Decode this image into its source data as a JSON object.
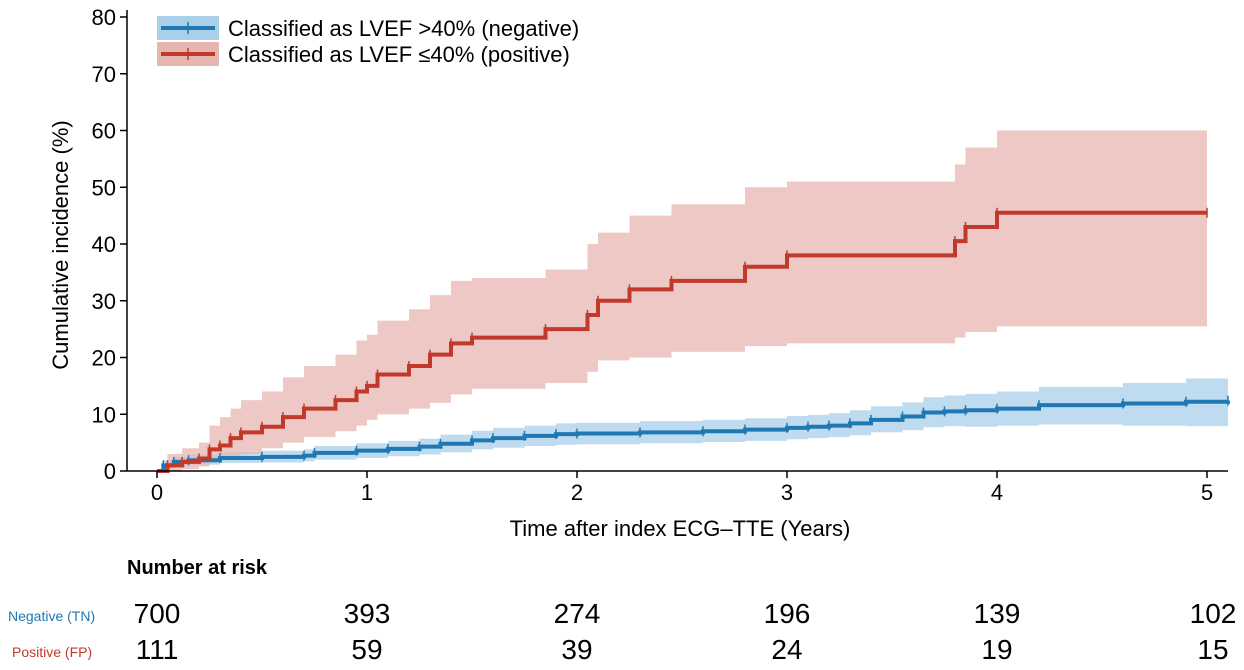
{
  "chart_data": {
    "type": "line",
    "title": "",
    "xlabel": "Time after index ECG–TTE (Years)",
    "ylabel": "Cumulative incidence (%)",
    "xlim": [
      0,
      5.1
    ],
    "ylim": [
      0,
      80
    ],
    "xticks": [
      0,
      1,
      2,
      3,
      4,
      5
    ],
    "yticks": [
      0,
      10,
      20,
      30,
      40,
      50,
      60,
      70,
      80
    ],
    "grid": false,
    "legend_position": "top-left",
    "series": [
      {
        "name": "Classified as LVEF >40% (negative)",
        "color": "#1f78b4",
        "band_color": "#a9cfe9",
        "x": [
          0,
          0.03,
          0.08,
          0.15,
          0.3,
          0.5,
          0.7,
          0.75,
          0.95,
          1.1,
          1.25,
          1.35,
          1.5,
          1.6,
          1.75,
          1.9,
          2.0,
          2.3,
          2.6,
          2.8,
          3.0,
          3.1,
          3.2,
          3.3,
          3.4,
          3.55,
          3.65,
          3.75,
          3.85,
          4.0,
          4.2,
          4.6,
          4.9,
          5.1
        ],
        "y": [
          0,
          1.0,
          1.6,
          1.9,
          2.3,
          2.5,
          2.7,
          3.2,
          3.6,
          3.9,
          4.3,
          4.8,
          5.4,
          5.8,
          6.2,
          6.5,
          6.6,
          6.8,
          7.0,
          7.3,
          7.6,
          7.8,
          8.0,
          8.4,
          9.0,
          9.6,
          10.3,
          10.5,
          10.7,
          11.0,
          11.6,
          11.9,
          12.2,
          12.4
        ],
        "lower": [
          0,
          0.3,
          0.9,
          1.1,
          1.4,
          1.5,
          1.7,
          2.0,
          2.3,
          2.6,
          2.9,
          3.3,
          3.8,
          4.1,
          4.4,
          4.6,
          4.7,
          4.9,
          5.1,
          5.3,
          5.6,
          5.8,
          6.0,
          6.3,
          6.8,
          7.2,
          7.7,
          7.9,
          7.8,
          8.0,
          8.2,
          8.0,
          7.9,
          7.9
        ],
        "upper": [
          0,
          1.9,
          2.5,
          2.9,
          3.3,
          3.6,
          3.8,
          4.4,
          4.9,
          5.3,
          5.7,
          6.4,
          7.1,
          7.6,
          8.0,
          8.4,
          8.5,
          8.8,
          9.0,
          9.3,
          9.7,
          9.9,
          10.2,
          10.7,
          11.4,
          12.1,
          13.0,
          13.3,
          13.6,
          14.0,
          14.8,
          15.5,
          16.3,
          16.8
        ]
      },
      {
        "name": "Classified as LVEF ≤40% (positive)",
        "color": "#c0392b",
        "band_color": "#e8b6b0",
        "x": [
          0,
          0.05,
          0.12,
          0.2,
          0.25,
          0.3,
          0.35,
          0.4,
          0.5,
          0.6,
          0.7,
          0.85,
          0.95,
          1.0,
          1.05,
          1.2,
          1.3,
          1.4,
          1.5,
          1.85,
          2.05,
          2.1,
          2.25,
          2.45,
          2.8,
          3.0,
          3.8,
          3.85,
          4.0,
          5.0
        ],
        "y": [
          0,
          1.0,
          1.6,
          2.2,
          3.8,
          4.5,
          5.8,
          6.8,
          7.8,
          9.5,
          11.0,
          12.5,
          14.0,
          15.0,
          17.0,
          18.5,
          20.5,
          22.5,
          23.5,
          25.0,
          27.5,
          30.0,
          32.0,
          33.5,
          36.0,
          38.0,
          40.5,
          43.0,
          45.5,
          45.5
        ],
        "lower": [
          0,
          0.0,
          0.3,
          0.8,
          1.5,
          2.0,
          2.5,
          3.0,
          4.0,
          5.0,
          6.0,
          7.0,
          8.0,
          9.0,
          10.0,
          11.0,
          12.0,
          13.5,
          14.5,
          15.5,
          17.5,
          19.5,
          20.0,
          21.0,
          22.0,
          22.5,
          23.5,
          24.5,
          25.5,
          25.5
        ],
        "upper": [
          0,
          3.0,
          4.0,
          5.0,
          8.0,
          9.5,
          11.0,
          12.5,
          14.0,
          16.5,
          18.5,
          20.5,
          23.0,
          24.0,
          26.5,
          28.5,
          31.0,
          33.5,
          34.0,
          35.5,
          40.0,
          42.0,
          45.0,
          47.0,
          50.0,
          51.0,
          54.0,
          57.0,
          60.0,
          60.0
        ]
      }
    ],
    "number_at_risk": {
      "title": "Number at risk",
      "rows": [
        {
          "label": "Negative (TN)",
          "color": "#1f78b4",
          "values": [
            700,
            393,
            274,
            196,
            139,
            102
          ]
        },
        {
          "label": "Positive (FP)",
          "color": "#c0392b",
          "values": [
            111,
            59,
            39,
            24,
            19,
            15
          ]
        }
      ]
    }
  }
}
